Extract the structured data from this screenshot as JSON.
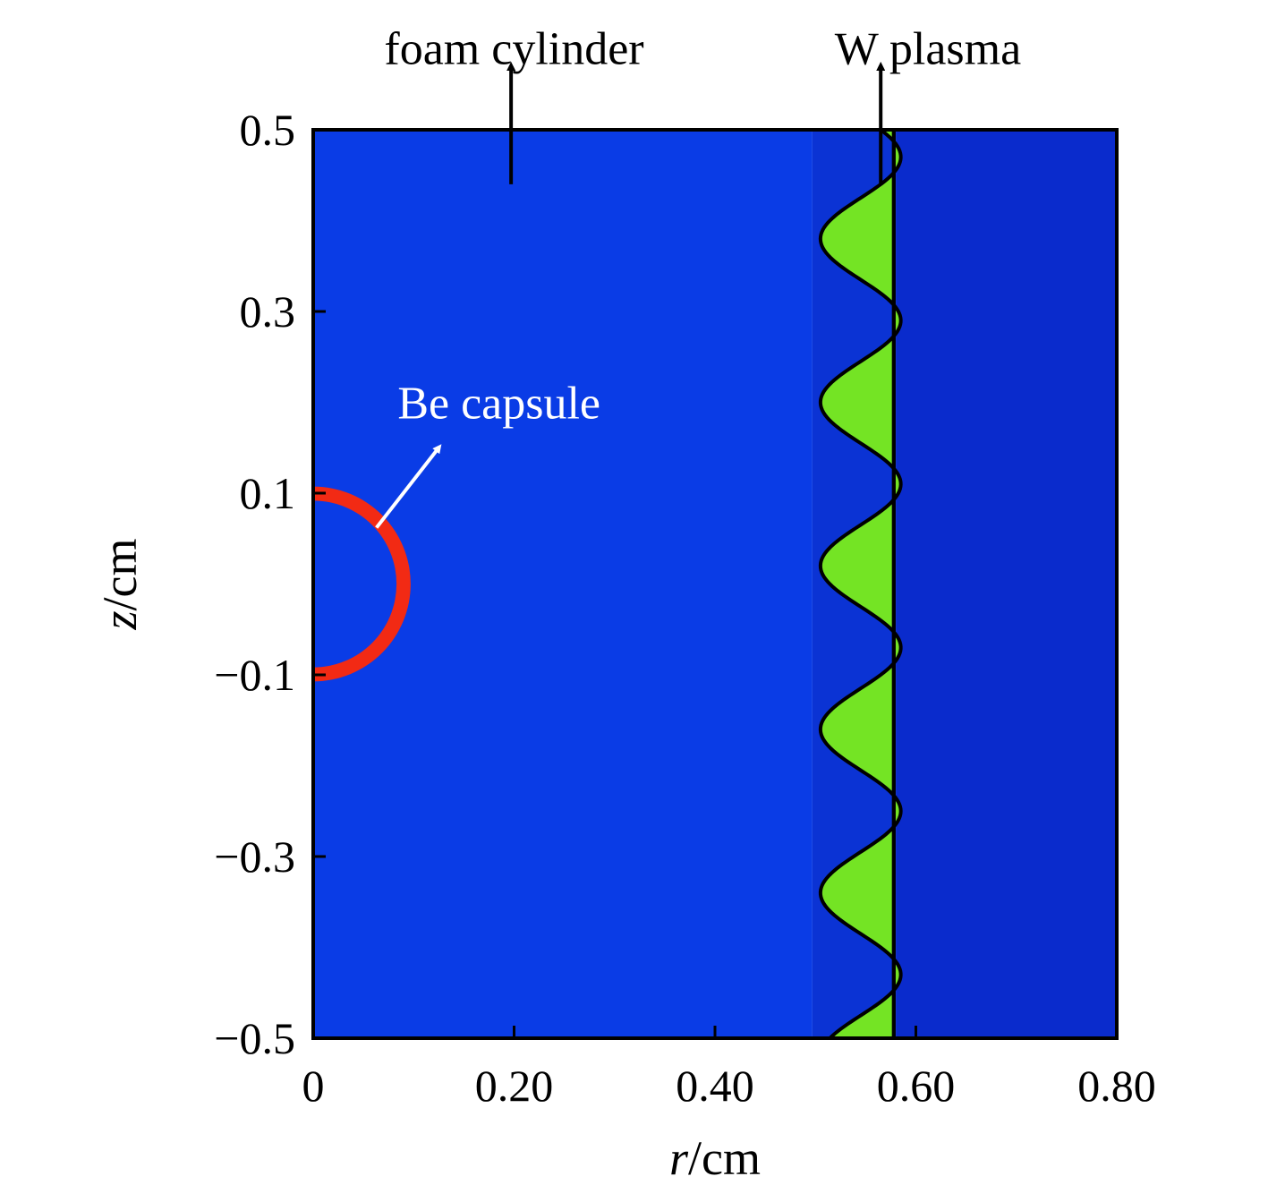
{
  "chart_data": {
    "type": "heatmap",
    "title": "",
    "x_axis": {
      "label_var": "r",
      "label_unit": "/cm",
      "range": [
        0,
        0.8
      ],
      "ticks": [
        0,
        0.2,
        0.4,
        0.6,
        0.8
      ],
      "tick_labels": [
        "0",
        "0.20",
        "0.40",
        "0.60",
        "0.80"
      ]
    },
    "y_axis": {
      "label_var": "z",
      "label_unit": "/cm",
      "range": [
        -0.5,
        0.5
      ],
      "ticks": [
        0.5,
        0.3,
        0.1,
        -0.1,
        -0.3,
        -0.5
      ],
      "tick_labels": [
        "0.5",
        "0.3",
        "0.1",
        "−0.1",
        "−0.3",
        "−0.5"
      ]
    },
    "grid": false,
    "regions": [
      {
        "name": "foam",
        "r_range": [
          0,
          0.497
        ],
        "color": "#0a3ce6"
      },
      {
        "name": "inner-gap",
        "r_range": [
          0.497,
          0.58
        ],
        "color": "#0b33d4"
      },
      {
        "name": "outer-region",
        "r_range": [
          0.58,
          0.8
        ],
        "color": "#0a2bcc"
      }
    ],
    "w_plasma": {
      "color": "#74e424",
      "outer_r": 0.578,
      "inner_base_r": 0.545,
      "amplitude": 0.04,
      "wavelength_z": 0.18,
      "peak_z": 0.2
    },
    "be_capsule": {
      "center_r": 0,
      "center_z": 0,
      "outer_radius": 0.097,
      "inner_radius": 0.083,
      "color": "#f22a14"
    },
    "annotations": [
      {
        "text": "foam cylinder",
        "text_r": 0.2,
        "text_z": 0.59,
        "color": "#000000",
        "arrow_from": [
          0.197,
          0.44
        ],
        "arrow_to": [
          0.197,
          0.57
        ]
      },
      {
        "text": "W plasma",
        "text_r": 0.612,
        "text_z": 0.59,
        "color": "#000000",
        "arrow_from": [
          0.565,
          0.44
        ],
        "arrow_to": [
          0.565,
          0.57
        ]
      },
      {
        "text": "Be capsule",
        "text_r": 0.185,
        "text_z": 0.2,
        "color": "#ffffff",
        "arrow_from": [
          0.063,
          0.062
        ],
        "arrow_to": [
          0.125,
          0.15
        ]
      }
    ]
  }
}
